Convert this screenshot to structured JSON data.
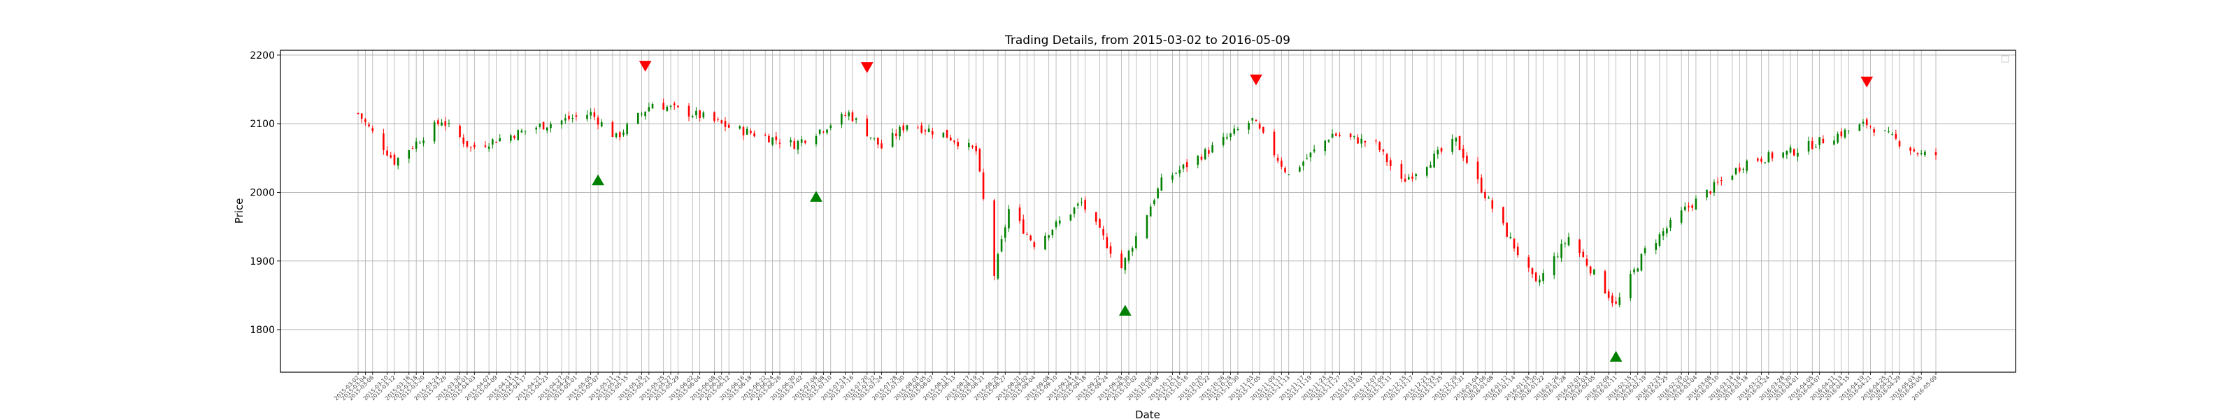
{
  "chart_data": {
    "type": "candlestick",
    "title": "Trading Details, from 2015-03-02 to 2016-05-09",
    "xlabel": "Date",
    "ylabel": "Price",
    "ylim": [
      1738,
      2207
    ],
    "yticks": [
      1800,
      1900,
      2000,
      2100,
      2200
    ],
    "x_range": [
      "2015-03-02",
      "2016-05-09"
    ],
    "grid": true,
    "colors": {
      "up": "#008000",
      "down": "#ff0000",
      "buy": "#008000",
      "sell": "#ff0000"
    },
    "anchors": [
      [
        "2015-03-02",
        2115
      ],
      [
        "2015-03-12",
        2045
      ],
      [
        "2015-03-25",
        2105
      ],
      [
        "2015-04-02",
        2065
      ],
      [
        "2015-04-20",
        2095
      ],
      [
        "2015-05-05",
        2115
      ],
      [
        "2015-05-12",
        2080
      ],
      [
        "2015-05-22",
        2130
      ],
      [
        "2015-06-05",
        2110
      ],
      [
        "2015-06-12",
        2095
      ],
      [
        "2015-06-30",
        2070
      ],
      [
        "2015-07-15",
        2115
      ],
      [
        "2015-07-24",
        2065
      ],
      [
        "2015-07-31",
        2100
      ],
      [
        "2015-08-10",
        2085
      ],
      [
        "2015-08-19",
        2060
      ],
      [
        "2015-08-24",
        1880
      ],
      [
        "2015-08-28",
        1975
      ],
      [
        "2015-09-04",
        1925
      ],
      [
        "2015-09-17",
        1985
      ],
      [
        "2015-09-28",
        1890
      ],
      [
        "2015-10-09",
        2015
      ],
      [
        "2015-10-23",
        2065
      ],
      [
        "2015-11-03",
        2105
      ],
      [
        "2015-11-13",
        2025
      ],
      [
        "2015-11-25",
        2085
      ],
      [
        "2015-12-07",
        2070
      ],
      [
        "2015-12-14",
        2015
      ],
      [
        "2015-12-29",
        2075
      ],
      [
        "2016-01-04",
        2015
      ],
      [
        "2016-01-20",
        1865
      ],
      [
        "2016-01-29",
        1935
      ],
      [
        "2016-02-11",
        1835
      ],
      [
        "2016-02-19",
        1915
      ],
      [
        "2016-03-01",
        1975
      ],
      [
        "2016-03-18",
        2045
      ],
      [
        "2016-03-31",
        2060
      ],
      [
        "2016-04-20",
        2100
      ],
      [
        "2016-05-05",
        2055
      ],
      [
        "2016-05-09",
        2055
      ]
    ],
    "markers": [
      {
        "type": "buy",
        "date": "2015-05-07",
        "price": 2017
      },
      {
        "type": "sell",
        "date": "2015-05-20",
        "price": 2185
      },
      {
        "type": "buy",
        "date": "2015-07-06",
        "price": 1993
      },
      {
        "type": "sell",
        "date": "2015-07-20",
        "price": 2183
      },
      {
        "type": "buy",
        "date": "2015-09-29",
        "price": 1827
      },
      {
        "type": "sell",
        "date": "2015-11-04",
        "price": 2165
      },
      {
        "type": "buy",
        "date": "2016-02-11",
        "price": 1760
      },
      {
        "type": "sell",
        "date": "2016-04-20",
        "price": 2162
      }
    ]
  }
}
